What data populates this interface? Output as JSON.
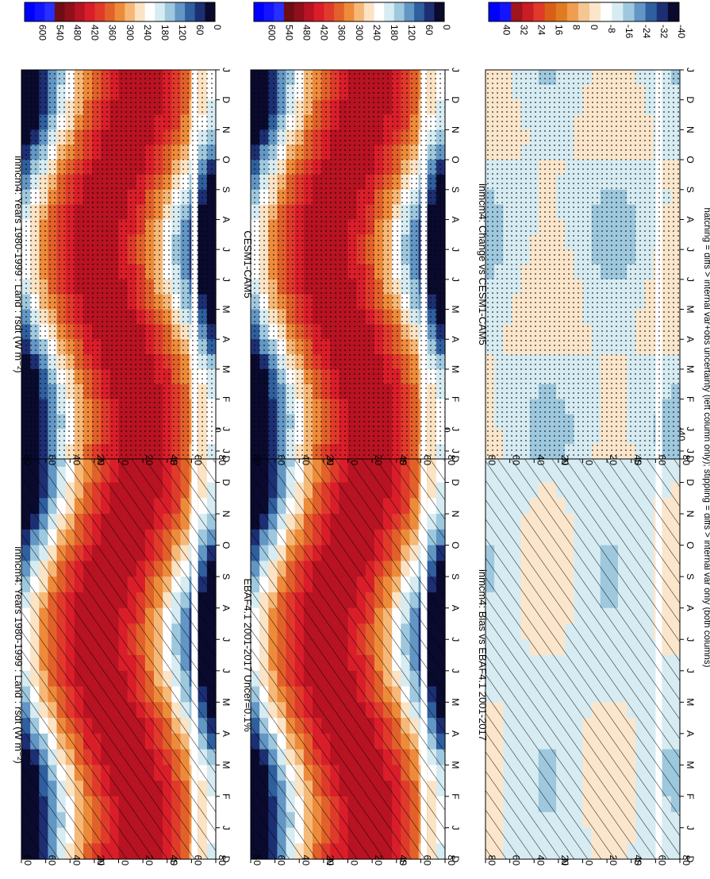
{
  "footer_note": "hatching = diffs > internal var+obs uncertainty (left column only); stippling = diffs > internal var only (both columns)",
  "colors": {
    "abs_palette": [
      "#0a0a2e",
      "#1d2f73",
      "#2f5f9e",
      "#6296c4",
      "#9ec8de",
      "#d6ecf2",
      "#ffffff",
      "#fbe3c4",
      "#f6b877",
      "#ee8b3a",
      "#e2612a",
      "#e03a2b",
      "#d91e2a",
      "#b81322",
      "#8f0f1a",
      "#6f0c14",
      "#2830ff",
      "#1414ff",
      "#0000ff"
    ],
    "diff_palette": [
      "#0a0a2e",
      "#1d2f73",
      "#2f5f9e",
      "#6296c4",
      "#9ec8de",
      "#d6ecf2",
      "#ffffff",
      "#fbe6cc",
      "#f4c692",
      "#ef9d4e",
      "#e07b22",
      "#d95f17",
      "#e03a2b",
      "#c81e24",
      "#a0141e",
      "#1414ff",
      "#0000ff"
    ]
  },
  "chart_data": [
    {
      "type": "heatmap",
      "panel": "left-top",
      "title": "inmcm4: Years 1980-1999 : Land : rsdt (W m⁻²)",
      "x_ticks": [
        "D",
        "J",
        "F",
        "M",
        "A",
        "M",
        "J",
        "J",
        "A",
        "S",
        "O",
        "N",
        "D",
        "J"
      ],
      "y_ticks": [
        "80",
        "60",
        "40",
        "20",
        "0",
        "20",
        "40",
        "60",
        "80"
      ],
      "y_letters": {
        "north": "N",
        "south": "S",
        "deg": "o"
      },
      "colorbar_ticks": [
        "600",
        "540",
        "480",
        "420",
        "360",
        "300",
        "240",
        "180",
        "120",
        "60",
        "0"
      ],
      "overlay": "hatching"
    },
    {
      "type": "heatmap",
      "panel": "left-middle",
      "title": "EBAF4.1 2001-2017 Uncer=0.1%",
      "x_ticks": [
        "D",
        "J",
        "F",
        "M",
        "A",
        "M",
        "J",
        "J",
        "A",
        "S",
        "O",
        "N",
        "D",
        "J"
      ],
      "y_ticks": [
        "80",
        "60",
        "40",
        "20",
        "0",
        "20",
        "40",
        "60",
        "80"
      ],
      "y_letters": {
        "north": "N",
        "south": "S",
        "deg": "o"
      },
      "colorbar_ticks": [
        "600",
        "540",
        "480",
        "420",
        "360",
        "300",
        "240",
        "180",
        "120",
        "60",
        "0"
      ],
      "overlay": "hatching"
    },
    {
      "type": "heatmap",
      "panel": "left-bottom",
      "title": "inmcm4: Bias vs EBAF4.1 2001-2017",
      "x_ticks": [
        "D",
        "J",
        "F",
        "M",
        "A",
        "M",
        "J",
        "J",
        "A",
        "S",
        "O",
        "N",
        "D",
        "J"
      ],
      "y_ticks": [
        "80",
        "60",
        "40",
        "20",
        "0",
        "20",
        "40",
        "60",
        "80"
      ],
      "y_letters": {
        "north": "N",
        "south": "S",
        "deg": "o"
      },
      "colorbar_ticks": [
        "40",
        "32",
        "24",
        "16",
        "8",
        "0",
        "-8",
        "-16",
        "-24",
        "-32",
        "-40"
      ],
      "overlay": "hatching"
    },
    {
      "type": "heatmap",
      "panel": "right-top",
      "title": "inmcm4: Years 1980-1999 : Land : rsdt (W m⁻²)",
      "x_ticks": [
        "D",
        "J",
        "F",
        "M",
        "A",
        "M",
        "J",
        "J",
        "A",
        "S",
        "O",
        "N",
        "D",
        "J"
      ],
      "y_ticks": [
        "80",
        "60",
        "40",
        "20",
        "0",
        "20",
        "40",
        "60",
        "80"
      ],
      "y_letters": {
        "north": "N",
        "south": "S",
        "deg": "o"
      },
      "colorbar_ticks": [
        "600",
        "540",
        "480",
        "420",
        "360",
        "300",
        "240",
        "180",
        "120",
        "60",
        "0"
      ],
      "overlay": "stippling"
    },
    {
      "type": "heatmap",
      "panel": "right-middle",
      "title": "CESM1-CAM5",
      "x_ticks": [
        "D",
        "J",
        "F",
        "M",
        "A",
        "M",
        "J",
        "J",
        "A",
        "S",
        "O",
        "N",
        "D",
        "J"
      ],
      "y_ticks": [
        "80",
        "60",
        "40",
        "20",
        "0",
        "20",
        "40",
        "60",
        "80"
      ],
      "y_letters": {
        "north": "N",
        "south": "S",
        "deg": "o"
      },
      "colorbar_ticks": [
        "600",
        "540",
        "480",
        "420",
        "360",
        "300",
        "240",
        "180",
        "120",
        "60",
        "0"
      ],
      "overlay": "stippling"
    },
    {
      "type": "heatmap",
      "panel": "right-bottom",
      "title": "inmcm4: Change vs CESM1-CAM5",
      "x_ticks": [
        "D",
        "J",
        "F",
        "M",
        "A",
        "M",
        "J",
        "J",
        "A",
        "S",
        "O",
        "N",
        "D",
        "J"
      ],
      "y_ticks": [
        "80",
        "60",
        "40",
        "20",
        "0",
        "20",
        "40",
        "60",
        "80"
      ],
      "y_letters": {
        "north": "N",
        "south": "S",
        "deg": "o"
      },
      "colorbar_ticks": [
        "40",
        "32",
        "24",
        "16",
        "8",
        "0",
        "-8",
        "-16",
        "-24",
        "-32",
        "-40"
      ],
      "overlay": "stippling"
    }
  ]
}
